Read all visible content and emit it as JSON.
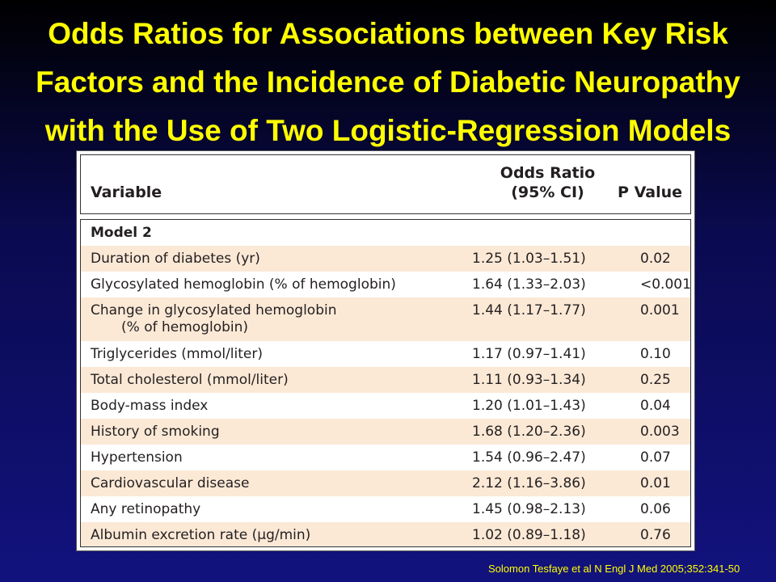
{
  "title": "Odds Ratios for Associations between Key Risk Factors and the Incidence of Diabetic Neuropathy with the Use of Two Logistic-Regression Models",
  "table": {
    "headers": {
      "variable": "Variable",
      "odds_ratio_line1": "Odds Ratio",
      "odds_ratio_line2": "(95% CI)",
      "p_value": "P Value"
    },
    "model_label": "Model 2",
    "rows": [
      {
        "variable": "Duration of diabetes (yr)",
        "variable_line2": "",
        "odds_ratio": "1.25 (1.03–1.51)",
        "p_value": "0.02"
      },
      {
        "variable": "Glycosylated hemoglobin (% of hemoglobin)",
        "variable_line2": "",
        "odds_ratio": "1.64 (1.33–2.03)",
        "p_value": "<0.001"
      },
      {
        "variable": "Change in glycosylated hemoglobin",
        "variable_line2": "(% of hemoglobin)",
        "odds_ratio": "1.44 (1.17–1.77)",
        "p_value": "0.001"
      },
      {
        "variable": "Triglycerides (mmol/liter)",
        "variable_line2": "",
        "odds_ratio": "1.17 (0.97–1.41)",
        "p_value": "0.10"
      },
      {
        "variable": "Total cholesterol (mmol/liter)",
        "variable_line2": "",
        "odds_ratio": "1.11 (0.93–1.34)",
        "p_value": "0.25"
      },
      {
        "variable": "Body-mass index",
        "variable_line2": "",
        "odds_ratio": "1.20 (1.01–1.43)",
        "p_value": "0.04"
      },
      {
        "variable": "History of smoking",
        "variable_line2": "",
        "odds_ratio": "1.68 (1.20–2.36)",
        "p_value": "0.003"
      },
      {
        "variable": "Hypertension",
        "variable_line2": "",
        "odds_ratio": "1.54 (0.96–2.47)",
        "p_value": "0.07"
      },
      {
        "variable": "Cardiovascular disease",
        "variable_line2": "",
        "odds_ratio": "2.12 (1.16–3.86)",
        "p_value": "0.01"
      },
      {
        "variable": "Any retinopathy",
        "variable_line2": "",
        "odds_ratio": "1.45 (0.98–2.13)",
        "p_value": "0.06"
      },
      {
        "variable": "Albumin excretion rate (μg/min)",
        "variable_line2": "",
        "odds_ratio": "1.02 (0.89–1.18)",
        "p_value": "0.76"
      }
    ]
  },
  "citation": "Solomon Tesfaye et al N Engl J Med 2005;352:341-50",
  "colors": {
    "title": "#ffff00",
    "row_alt": "#fbe9d6",
    "background_top": "#000000",
    "background_bottom": "#12127e"
  }
}
